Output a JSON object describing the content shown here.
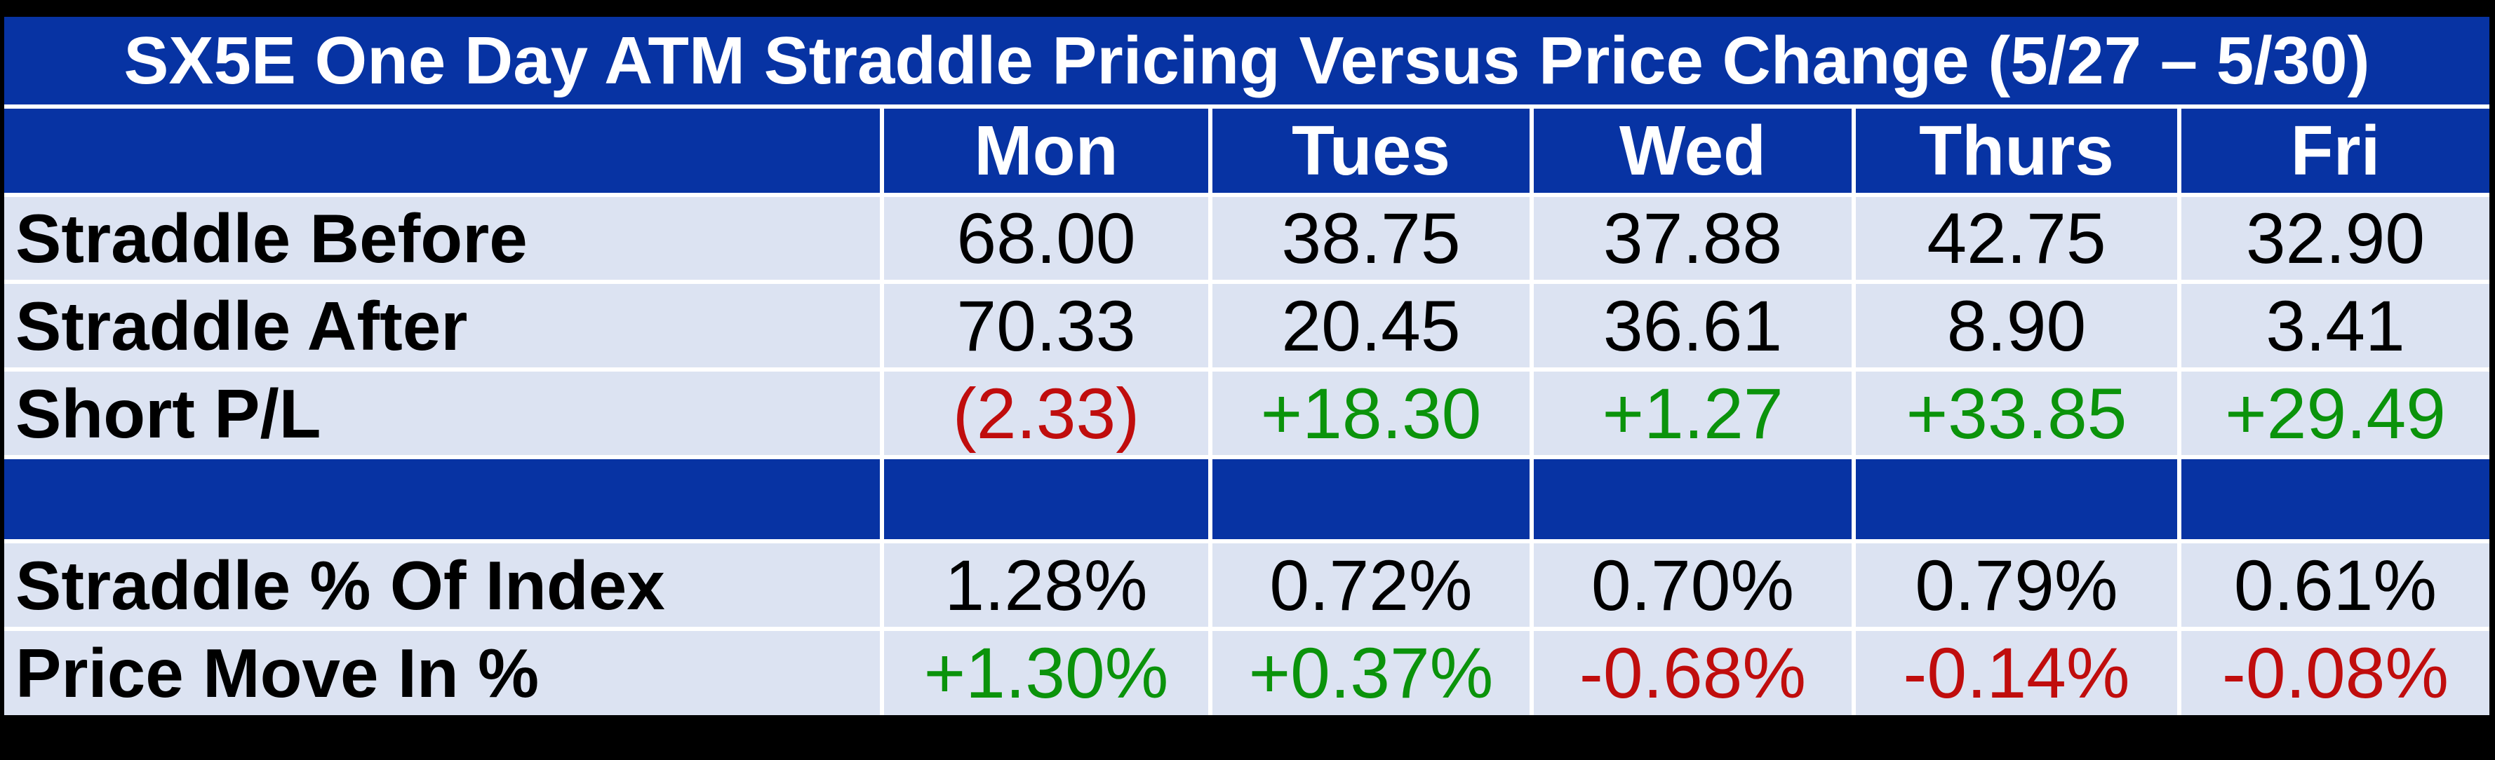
{
  "table": {
    "title": "SX5E One Day ATM Straddle Pricing Versus Price Change (5/27 – 5/30)",
    "corner_label": "",
    "columns": [
      "Mon",
      "Tues",
      "Wed",
      "Thurs",
      "Fri"
    ],
    "rows": [
      {
        "label": "Straddle Before",
        "values": [
          "68.00",
          "38.75",
          "37.88",
          "42.75",
          "32.90"
        ],
        "value_colors": [
          "default",
          "default",
          "default",
          "default",
          "default"
        ]
      },
      {
        "label": "Straddle After",
        "values": [
          "70.33",
          "20.45",
          "36.61",
          "8.90",
          "3.41"
        ],
        "value_colors": [
          "default",
          "default",
          "default",
          "default",
          "default"
        ]
      },
      {
        "label": "Short P/L",
        "values": [
          "(2.33)",
          "+18.30",
          "+1.27",
          "+33.85",
          "+29.49"
        ],
        "value_colors": [
          "negative",
          "positive",
          "positive",
          "positive",
          "positive"
        ]
      },
      {
        "label": "Straddle % Of Index",
        "values": [
          "1.28%",
          "0.72%",
          "0.70%",
          "0.79%",
          "0.61%"
        ],
        "value_colors": [
          "default",
          "default",
          "default",
          "default",
          "default"
        ]
      },
      {
        "label": "Price Move In %",
        "values": [
          "+1.30%",
          "+0.37%",
          "-0.68%",
          "-0.14%",
          "-0.08%"
        ],
        "value_colors": [
          "positive",
          "positive",
          "negative",
          "negative",
          "negative"
        ]
      }
    ],
    "colors": {
      "header_blue": "#0733A3",
      "row_light": "#DCE3F2",
      "positive_green": "#0B930B",
      "negative_red": "#C00D0D",
      "grid_line_white": "#FFFFFF",
      "page_black": "#000000"
    }
  },
  "chart_data": {
    "type": "table",
    "title": "SX5E One Day ATM Straddle Pricing Versus Price Change (5/27 – 5/30)",
    "categories": [
      "Mon",
      "Tues",
      "Wed",
      "Thurs",
      "Fri"
    ],
    "series": [
      {
        "name": "Straddle Before",
        "values": [
          68.0,
          38.75,
          37.88,
          42.75,
          32.9
        ]
      },
      {
        "name": "Straddle After",
        "values": [
          70.33,
          20.45,
          36.61,
          8.9,
          3.41
        ]
      },
      {
        "name": "Short P/L",
        "values": [
          -2.33,
          18.3,
          1.27,
          33.85,
          29.49
        ]
      },
      {
        "name": "Straddle % Of Index (pct)",
        "values": [
          1.28,
          0.72,
          0.7,
          0.79,
          0.61
        ]
      },
      {
        "name": "Price Move In % (pct)",
        "values": [
          1.3,
          0.37,
          -0.68,
          -0.14,
          -0.08
        ]
      }
    ],
    "layout": {
      "grid": "white lines",
      "header_position": "top row and left column"
    }
  }
}
